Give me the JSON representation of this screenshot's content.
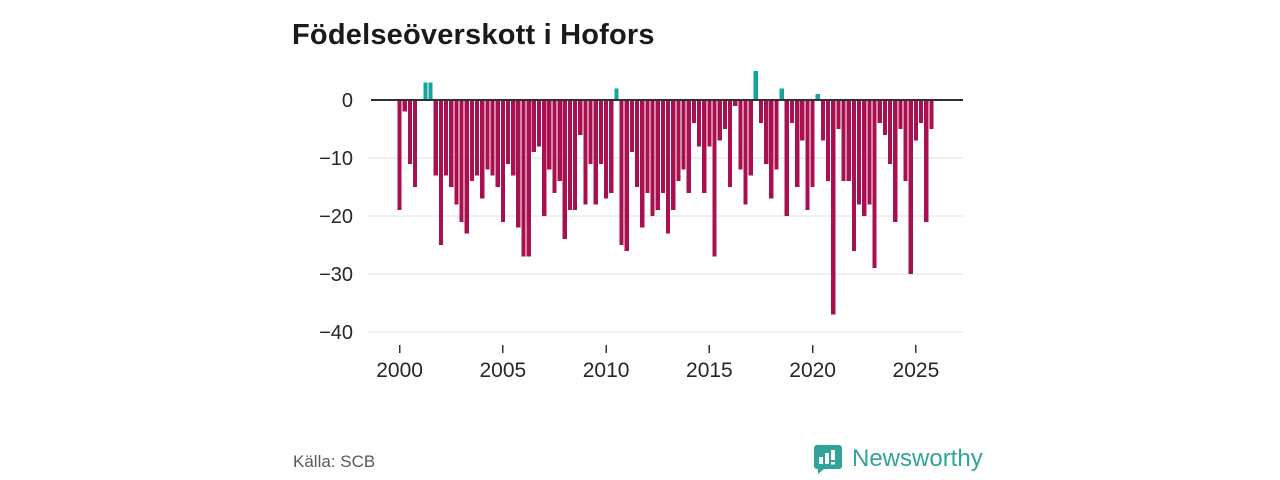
{
  "title": "Födelseöverskott i Hofors",
  "source": "Källa: SCB",
  "brand": {
    "name": "Newsworthy",
    "color": "#31a49a"
  },
  "chart_data": {
    "type": "bar",
    "title": "Födelseöverskott i Hofors",
    "frequency": "quarterly",
    "x_start_year": 2000,
    "x_tick_years": [
      2000,
      2005,
      2010,
      2015,
      2020,
      2025
    ],
    "x_tick_labels": [
      "2000",
      "2005",
      "2010",
      "2015",
      "2020",
      "2025"
    ],
    "y_tick_labels": [
      "0",
      "−10",
      "−20",
      "−30",
      "−40"
    ],
    "y_tick_values": [
      0,
      -10,
      -20,
      -30,
      -40
    ],
    "ylim": [
      -40,
      6
    ],
    "grid": "horizontal",
    "legend": "none",
    "colors": {
      "negative": "#a81050",
      "positive": "#12a5a0",
      "zero_line": "#303030",
      "gridline": "#e2e2e2",
      "axis_text": "#262626"
    },
    "series": [
      {
        "name": "Födelseöverskott",
        "values": [
          -19,
          -2,
          -11,
          -15,
          0,
          3,
          3,
          -13,
          -25,
          -13,
          -15,
          -18,
          -21,
          -23,
          -14,
          -13,
          -17,
          -12,
          -13,
          -15,
          -21,
          -11,
          -13,
          -22,
          -27,
          -27,
          -9,
          -8,
          -20,
          -12,
          -16,
          -14,
          -24,
          -19,
          -19,
          -6,
          -18,
          -11,
          -18,
          -11,
          -17,
          -16,
          2,
          -25,
          -26,
          -9,
          -15,
          -22,
          -16,
          -20,
          -19,
          -16,
          -23,
          -19,
          -14,
          -12,
          -16,
          -4,
          -8,
          -16,
          -8,
          -27,
          -7,
          -5,
          -15,
          -1,
          -12,
          -18,
          -13,
          5,
          -4,
          -11,
          -17,
          -12,
          2,
          -20,
          -4,
          -15,
          -7,
          -19,
          -15,
          1,
          -7,
          -14,
          -37,
          -5,
          -14,
          -14,
          -26,
          -18,
          -20,
          -18,
          -29,
          -4,
          -6,
          -11,
          -21,
          -5,
          -14,
          -30,
          -7,
          -4,
          -21,
          -5
        ]
      }
    ]
  }
}
